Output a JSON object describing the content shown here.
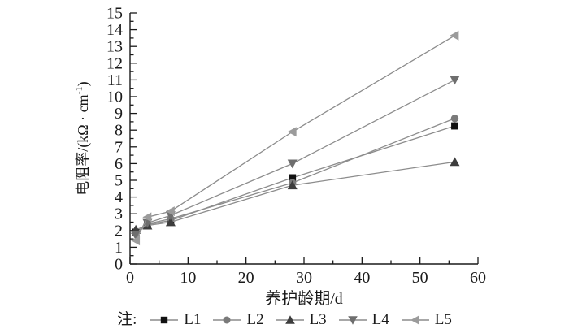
{
  "chart_data": {
    "type": "line",
    "title": "",
    "xlabel": "养护龄期/d",
    "ylabel": {
      "prefix": "电阻率/(kΩ · cm",
      "superscript": "-1",
      "suffix": ")"
    },
    "xlim": [
      0,
      60
    ],
    "ylim": [
      0,
      15
    ],
    "x_major_tick_step": 10,
    "x_minor_tick_step": 5,
    "y_major_tick_step": 1,
    "y_minor_tick_step": 0.5,
    "x_tick_labels": [
      "0",
      "10",
      "20",
      "30",
      "40",
      "50",
      "60"
    ],
    "y_tick_labels": [
      "0",
      "1",
      "2",
      "3",
      "4",
      "5",
      "6",
      "7",
      "8",
      "9",
      "10",
      "11",
      "12",
      "13",
      "14",
      "15"
    ],
    "grid": false,
    "legend_prefix": "注:",
    "legend_position": "bottom",
    "line_color": "#8c8c8c",
    "x": [
      1,
      3,
      7,
      28,
      56
    ],
    "series": [
      {
        "name": "L1",
        "marker": "square",
        "color": "#111111",
        "values": [
          1.9,
          2.35,
          2.6,
          5.15,
          8.25
        ]
      },
      {
        "name": "L2",
        "marker": "circle",
        "color": "#7a7a7a",
        "values": [
          1.85,
          2.4,
          2.7,
          4.85,
          8.7
        ]
      },
      {
        "name": "L3",
        "marker": "triangle-up",
        "color": "#3d3d3d",
        "values": [
          2.05,
          2.3,
          2.5,
          4.7,
          6.1
        ]
      },
      {
        "name": "L4",
        "marker": "triangle-down",
        "color": "#6e6e6e",
        "values": [
          1.7,
          2.45,
          2.9,
          6.0,
          11.0
        ]
      },
      {
        "name": "L5",
        "marker": "triangle-left",
        "color": "#9b9b9b",
        "values": [
          1.4,
          2.8,
          3.15,
          7.9,
          13.65
        ]
      }
    ]
  }
}
